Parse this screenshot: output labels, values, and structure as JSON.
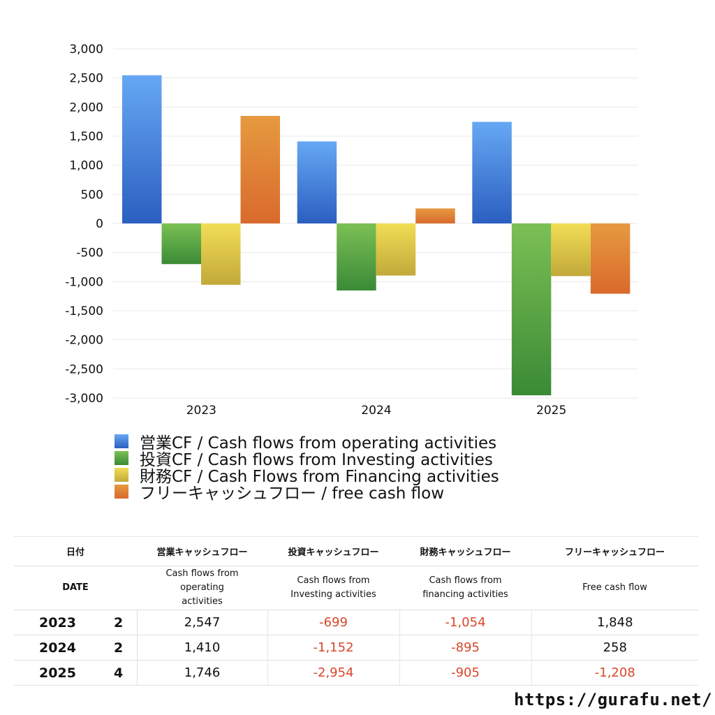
{
  "chart_data": {
    "type": "bar",
    "categories": [
      "2023",
      "2024",
      "2025"
    ],
    "series": [
      {
        "name": "営業CF / Cash flows from operating activities",
        "values": [
          2547,
          1410,
          1746
        ],
        "color_top": "#66a8f4",
        "color_bottom": "#2b5fc0"
      },
      {
        "name": "投資CF / Cash flows from Investing activities",
        "values": [
          -699,
          -1152,
          -2954
        ],
        "color_top": "#7cc055",
        "color_bottom": "#3a8a35"
      },
      {
        "name": "財務CF / Cash Flows from Financing activities",
        "values": [
          -1054,
          -895,
          -905
        ],
        "color_top": "#f2dd55",
        "color_bottom": "#c2a93a"
      },
      {
        "name": "フリーキャッシュフロー / free cash flow",
        "values": [
          1848,
          258,
          -1208
        ],
        "color_top": "#e69a40",
        "color_bottom": "#d96a2c"
      }
    ],
    "ylim": [
      -3000,
      3000
    ],
    "yticks": [
      "3,000",
      "2,500",
      "2,000",
      "1,500",
      "1,000",
      "500",
      "0",
      "-500",
      "-1,000",
      "-1,500",
      "-2,000",
      "-2,500",
      "-3,000"
    ],
    "grid": true,
    "legend": "bottom"
  },
  "table": {
    "headers_ja": [
      "日付",
      "営業キャッシュフロー",
      "投資キャッシュフロー",
      "財務キャッシュフロー",
      "フリーキャッシュフロー"
    ],
    "headers_en": [
      "DATE",
      "Cash flows from operating activities",
      "Cash flows from Investing activities",
      "Cash flows from financing activities",
      "Free cash flow"
    ],
    "rows": [
      {
        "year": "2023",
        "q": "2",
        "cells": [
          "2,547",
          "-699",
          "-1,054",
          "1,848"
        ]
      },
      {
        "year": "2024",
        "q": "2",
        "cells": [
          "1,410",
          "-1,152",
          "-895",
          "258"
        ]
      },
      {
        "year": "2025",
        "q": "4",
        "cells": [
          "1,746",
          "-2,954",
          "-905",
          "-1,208"
        ]
      }
    ]
  },
  "site": "https://gurafu.net/"
}
